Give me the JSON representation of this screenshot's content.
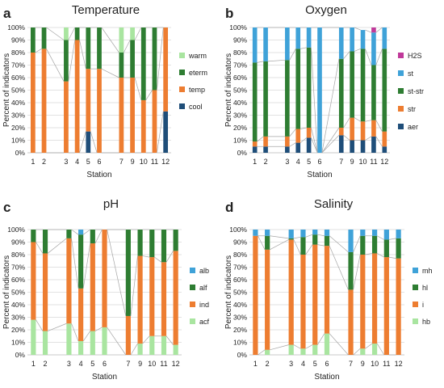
{
  "figure": {
    "background": "#ffffff"
  },
  "panel_letters": [
    "a",
    "b",
    "c",
    "d"
  ],
  "chart_data": [
    {
      "type": "bar",
      "stacked": true,
      "title": "Temperature",
      "xlabel": "Station",
      "ylabel": "Percent of indicators",
      "ylim": [
        0,
        100
      ],
      "yticks": [
        "0%",
        "10%",
        "20%",
        "30%",
        "40%",
        "50%",
        "60%",
        "70%",
        "80%",
        "90%",
        "100%"
      ],
      "categories": [
        "1",
        "2",
        "",
        "3",
        "4",
        "5",
        "6",
        "",
        "7",
        "9",
        "10",
        "11",
        "12"
      ],
      "legend_position": "right",
      "series": [
        {
          "name": "cool",
          "color": "#1f4e79",
          "values": [
            0,
            0,
            null,
            0,
            0,
            17,
            0,
            null,
            0,
            0,
            0,
            0,
            33
          ]
        },
        {
          "name": "temp",
          "color": "#ed7d31",
          "values": [
            80,
            83,
            null,
            57,
            90,
            50,
            67,
            null,
            60,
            60,
            42,
            50,
            67
          ]
        },
        {
          "name": "eterm",
          "color": "#2e7d32",
          "values": [
            20,
            17,
            null,
            33,
            10,
            33,
            33,
            null,
            20,
            30,
            58,
            50,
            0
          ]
        },
        {
          "name": "warm",
          "color": "#a9e5a0",
          "values": [
            0,
            0,
            null,
            10,
            0,
            0,
            0,
            null,
            20,
            10,
            0,
            0,
            0
          ]
        }
      ]
    },
    {
      "type": "bar",
      "stacked": true,
      "title": "Oxygen",
      "xlabel": "Station",
      "ylabel": "Percent of indicators",
      "ylim": [
        0,
        100
      ],
      "yticks": [
        "0%",
        "10%",
        "20%",
        "30%",
        "40%",
        "50%",
        "60%",
        "70%",
        "80%",
        "90%",
        "100%"
      ],
      "categories": [
        "1",
        "2",
        "",
        "3",
        "4",
        "5",
        "6",
        "",
        "7",
        "9",
        "10",
        "11",
        "12"
      ],
      "legend_position": "right",
      "series": [
        {
          "name": "aer",
          "color": "#1f4e79",
          "values": [
            5,
            5,
            null,
            5,
            8,
            12,
            0,
            null,
            14,
            10,
            10,
            13,
            5
          ]
        },
        {
          "name": "str",
          "color": "#ed7d31",
          "values": [
            4,
            8,
            null,
            8,
            11,
            8,
            0,
            null,
            6,
            18,
            15,
            13,
            12
          ]
        },
        {
          "name": "st-str",
          "color": "#2e7d32",
          "values": [
            63,
            60,
            null,
            61,
            64,
            64,
            0,
            null,
            55,
            53,
            58,
            44,
            66
          ]
        },
        {
          "name": "st",
          "color": "#3fa2d8",
          "values": [
            28,
            27,
            null,
            26,
            17,
            16,
            100,
            null,
            25,
            19,
            15,
            26,
            17
          ]
        },
        {
          "name": "H2S",
          "color": "#c0399a",
          "values": [
            0,
            0,
            null,
            0,
            0,
            0,
            0,
            null,
            0,
            0,
            0,
            4,
            0
          ]
        }
      ]
    },
    {
      "type": "bar",
      "stacked": true,
      "title": "pH",
      "xlabel": "Station",
      "ylabel": "Percent of indicators",
      "ylim": [
        0,
        100
      ],
      "yticks": [
        "0%",
        "10%",
        "20%",
        "30%",
        "40%",
        "50%",
        "60%",
        "70%",
        "80%",
        "90%",
        "100%"
      ],
      "categories": [
        "1",
        "2",
        "",
        "3",
        "4",
        "5",
        "6",
        "",
        "7",
        "9",
        "10",
        "11",
        "12"
      ],
      "legend_position": "right",
      "series": [
        {
          "name": "acf",
          "color": "#a9e5a0",
          "values": [
            28,
            19,
            null,
            25,
            11,
            19,
            22,
            null,
            0,
            9,
            15,
            15,
            8
          ]
        },
        {
          "name": "ind",
          "color": "#ed7d31",
          "values": [
            62,
            62,
            null,
            68,
            42,
            70,
            78,
            null,
            31,
            70,
            63,
            59,
            75
          ]
        },
        {
          "name": "alf",
          "color": "#2e7d32",
          "values": [
            10,
            19,
            null,
            7,
            43,
            11,
            0,
            null,
            69,
            21,
            22,
            26,
            17
          ]
        },
        {
          "name": "alb",
          "color": "#3fa2d8",
          "values": [
            0,
            0,
            null,
            0,
            4,
            0,
            0,
            null,
            0,
            0,
            0,
            0,
            0
          ]
        }
      ]
    },
    {
      "type": "bar",
      "stacked": true,
      "title": "Salinity",
      "xlabel": "Station",
      "ylabel": "Percent of indicators",
      "ylim": [
        0,
        100
      ],
      "yticks": [
        "0%",
        "10%",
        "20%",
        "30%",
        "40%",
        "50%",
        "60%",
        "70%",
        "80%",
        "90%",
        "100%"
      ],
      "categories": [
        "1",
        "2",
        "",
        "3",
        "4",
        "5",
        "6",
        "",
        "7",
        "9",
        "10",
        "11",
        "12"
      ],
      "legend_position": "right",
      "series": [
        {
          "name": "hb",
          "color": "#a9e5a0",
          "values": [
            0,
            4,
            null,
            8,
            5,
            8,
            17,
            null,
            0,
            5,
            9,
            0,
            0
          ]
        },
        {
          "name": "i",
          "color": "#ed7d31",
          "values": [
            95,
            80,
            null,
            84,
            75,
            80,
            70,
            null,
            52,
            75,
            72,
            78,
            77
          ]
        },
        {
          "name": "hl",
          "color": "#2e7d32",
          "values": [
            0,
            11,
            null,
            1,
            14,
            8,
            8,
            null,
            30,
            15,
            14,
            14,
            16
          ]
        },
        {
          "name": "mh",
          "color": "#3fa2d8",
          "values": [
            5,
            5,
            null,
            7,
            6,
            4,
            5,
            null,
            18,
            5,
            5,
            8,
            7
          ]
        }
      ]
    }
  ]
}
